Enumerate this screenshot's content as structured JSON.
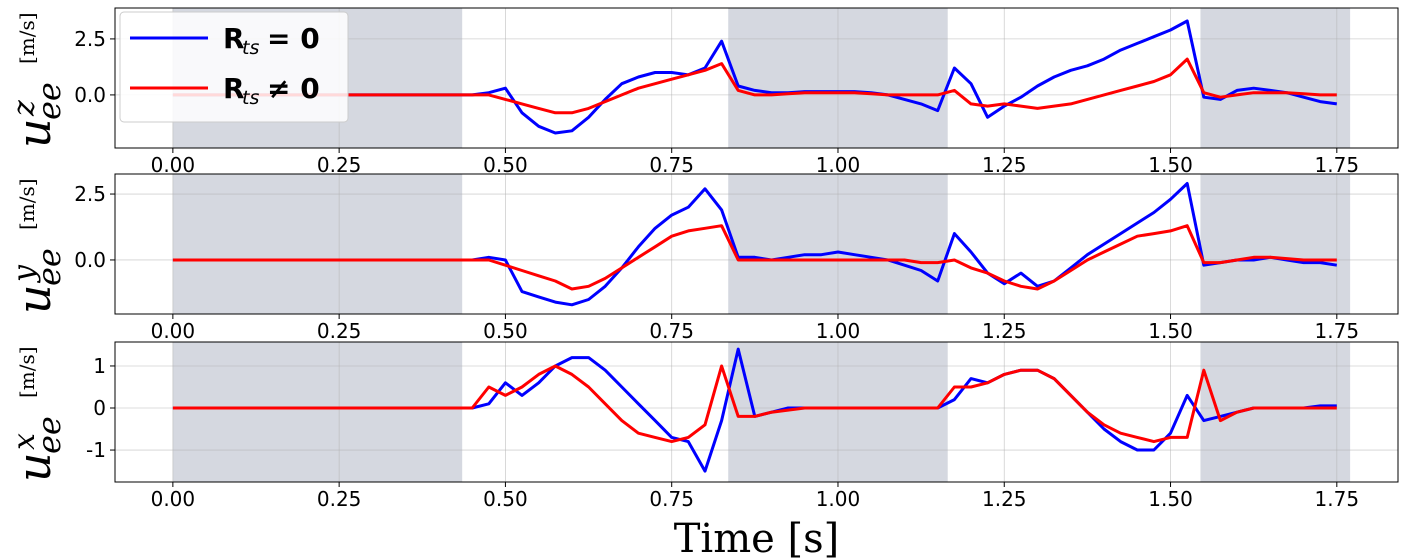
{
  "chart_data": [
    {
      "type": "line",
      "ylabel": {
        "base": "u",
        "sub": "ee",
        "sup": "z",
        "unit": "[m/s]"
      },
      "x": [
        0,
        0.025,
        0.05,
        0.075,
        0.1,
        0.125,
        0.15,
        0.175,
        0.2,
        0.225,
        0.25,
        0.275,
        0.3,
        0.325,
        0.35,
        0.375,
        0.4,
        0.425,
        0.45,
        0.475,
        0.5,
        0.525,
        0.55,
        0.575,
        0.6,
        0.625,
        0.65,
        0.675,
        0.7,
        0.725,
        0.75,
        0.775,
        0.8,
        0.825,
        0.85,
        0.875,
        0.9,
        0.925,
        0.95,
        0.975,
        1,
        1.025,
        1.05,
        1.075,
        1.1,
        1.125,
        1.15,
        1.175,
        1.2,
        1.225,
        1.25,
        1.275,
        1.3,
        1.325,
        1.35,
        1.375,
        1.4,
        1.425,
        1.45,
        1.475,
        1.5,
        1.525,
        1.55,
        1.575,
        1.6,
        1.625,
        1.65,
        1.675,
        1.7,
        1.725,
        1.75
      ],
      "series": [
        {
          "name": {
            "base": "R",
            "sub": "ts",
            "rel": "= 0"
          },
          "color": "#0000ff",
          "values": [
            0,
            0,
            0,
            0,
            0,
            0,
            0,
            0,
            0,
            0,
            0,
            0,
            0,
            0,
            0,
            0,
            0,
            0,
            0,
            0.1,
            0.3,
            -0.8,
            -1.4,
            -1.7,
            -1.6,
            -1.0,
            -0.2,
            0.5,
            0.8,
            1.0,
            1.0,
            0.9,
            1.2,
            2.4,
            0.4,
            0.2,
            0.1,
            0.1,
            0.15,
            0.15,
            0.15,
            0.15,
            0.1,
            0,
            -0.2,
            -0.4,
            -0.7,
            1.2,
            0.5,
            -1.0,
            -0.5,
            -0.1,
            0.4,
            0.8,
            1.1,
            1.3,
            1.6,
            2.0,
            2.3,
            2.6,
            2.9,
            3.3,
            -0.1,
            -0.2,
            0.2,
            0.3,
            0.2,
            0.1,
            -0.1,
            -0.3,
            -0.4
          ]
        },
        {
          "name": {
            "base": "R",
            "sub": "ts",
            "rel": "≠ 0"
          },
          "color": "#ff0000",
          "values": [
            0,
            0,
            0,
            0,
            0,
            0,
            0,
            0,
            0,
            0,
            0,
            0,
            0,
            0,
            0,
            0,
            0,
            0,
            0,
            0,
            -0.2,
            -0.4,
            -0.6,
            -0.8,
            -0.8,
            -0.6,
            -0.3,
            0,
            0.3,
            0.5,
            0.7,
            0.9,
            1.1,
            1.4,
            0.2,
            0,
            0,
            0.05,
            0.1,
            0.1,
            0.1,
            0.1,
            0.05,
            0,
            0,
            0,
            0,
            0.2,
            -0.4,
            -0.5,
            -0.4,
            -0.5,
            -0.6,
            -0.5,
            -0.4,
            -0.2,
            0,
            0.2,
            0.4,
            0.6,
            0.9,
            1.6,
            0.1,
            -0.1,
            0,
            0.1,
            0.1,
            0.1,
            0.05,
            0,
            0
          ]
        }
      ],
      "xlim": [
        -0.087,
        1.842
      ],
      "ylim": [
        -2.37,
        3.88
      ],
      "xticks": [
        {
          "value": 0,
          "label": "0.00"
        },
        {
          "value": 0.25,
          "label": "0.25"
        },
        {
          "value": 0.5,
          "label": "0.50"
        },
        {
          "value": 0.75,
          "label": "0.75"
        },
        {
          "value": 1,
          "label": "1.00"
        },
        {
          "value": 1.25,
          "label": "1.25"
        },
        {
          "value": 1.5,
          "label": "1.50"
        },
        {
          "value": 1.75,
          "label": "1.75"
        }
      ],
      "yticks": [
        {
          "value": 0,
          "label": "0.0"
        },
        {
          "value": 2.5,
          "label": "2.5"
        }
      ],
      "shaded": [
        [
          0,
          0.435
        ],
        [
          0.835,
          1.165
        ],
        [
          1.545,
          1.77
        ]
      ],
      "shade_color": "#d5d8e0",
      "grid": true,
      "legend": "upper left"
    },
    {
      "type": "line",
      "ylabel": {
        "base": "u",
        "sub": "ee",
        "sup": "y",
        "unit": "[m/s]"
      },
      "x": [
        0,
        0.025,
        0.05,
        0.075,
        0.1,
        0.125,
        0.15,
        0.175,
        0.2,
        0.225,
        0.25,
        0.275,
        0.3,
        0.325,
        0.35,
        0.375,
        0.4,
        0.425,
        0.45,
        0.475,
        0.5,
        0.525,
        0.55,
        0.575,
        0.6,
        0.625,
        0.65,
        0.675,
        0.7,
        0.725,
        0.75,
        0.775,
        0.8,
        0.825,
        0.85,
        0.875,
        0.9,
        0.925,
        0.95,
        0.975,
        1,
        1.025,
        1.05,
        1.075,
        1.1,
        1.125,
        1.15,
        1.175,
        1.2,
        1.225,
        1.25,
        1.275,
        1.3,
        1.325,
        1.35,
        1.375,
        1.4,
        1.425,
        1.45,
        1.475,
        1.5,
        1.525,
        1.55,
        1.575,
        1.6,
        1.625,
        1.65,
        1.675,
        1.7,
        1.725,
        1.75
      ],
      "series": [
        {
          "color": "#0000ff",
          "values": [
            0,
            0,
            0,
            0,
            0,
            0,
            0,
            0,
            0,
            0,
            0,
            0,
            0,
            0,
            0,
            0,
            0,
            0,
            0,
            0.1,
            0,
            -1.2,
            -1.4,
            -1.6,
            -1.7,
            -1.5,
            -1.0,
            -0.3,
            0.5,
            1.2,
            1.7,
            2.0,
            2.7,
            1.9,
            0.1,
            0.1,
            0,
            0.1,
            0.2,
            0.2,
            0.3,
            0.2,
            0.1,
            0,
            -0.2,
            -0.4,
            -0.8,
            1.0,
            0.3,
            -0.5,
            -0.9,
            -0.5,
            -1.0,
            -0.8,
            -0.3,
            0.2,
            0.6,
            1.0,
            1.4,
            1.8,
            2.3,
            2.9,
            -0.2,
            -0.1,
            0,
            0,
            0.1,
            0,
            -0.1,
            -0.1,
            -0.2
          ]
        },
        {
          "color": "#ff0000",
          "values": [
            0,
            0,
            0,
            0,
            0,
            0,
            0,
            0,
            0,
            0,
            0,
            0,
            0,
            0,
            0,
            0,
            0,
            0,
            0,
            0,
            -0.2,
            -0.4,
            -0.6,
            -0.8,
            -1.1,
            -1.0,
            -0.7,
            -0.3,
            0.1,
            0.5,
            0.9,
            1.1,
            1.2,
            1.3,
            0,
            0,
            0,
            0,
            0,
            0,
            0,
            0,
            0,
            0,
            0,
            -0.1,
            -0.1,
            0,
            -0.3,
            -0.5,
            -0.8,
            -1.0,
            -1.1,
            -0.8,
            -0.4,
            0,
            0.3,
            0.6,
            0.9,
            1.0,
            1.1,
            1.3,
            -0.1,
            -0.1,
            0,
            0.1,
            0.1,
            0.05,
            0,
            0,
            0
          ]
        }
      ],
      "xlim": [
        -0.087,
        1.842
      ],
      "ylim": [
        -2.05,
        3.26
      ],
      "xticks": [
        {
          "value": 0,
          "label": "0.00"
        },
        {
          "value": 0.25,
          "label": "0.25"
        },
        {
          "value": 0.5,
          "label": "0.50"
        },
        {
          "value": 0.75,
          "label": "0.75"
        },
        {
          "value": 1,
          "label": "1.00"
        },
        {
          "value": 1.25,
          "label": "1.25"
        },
        {
          "value": 1.5,
          "label": "1.50"
        },
        {
          "value": 1.75,
          "label": "1.75"
        }
      ],
      "yticks": [
        {
          "value": 0,
          "label": "0.0"
        },
        {
          "value": 2.5,
          "label": "2.5"
        }
      ],
      "shaded": [
        [
          0,
          0.435
        ],
        [
          0.835,
          1.165
        ],
        [
          1.545,
          1.77
        ]
      ],
      "shade_color": "#d5d8e0",
      "grid": true
    },
    {
      "type": "line",
      "ylabel": {
        "base": "u",
        "sub": "ee",
        "sup": "x",
        "unit": "[m/s]"
      },
      "xlabel": "Time [s]",
      "x": [
        0,
        0.025,
        0.05,
        0.075,
        0.1,
        0.125,
        0.15,
        0.175,
        0.2,
        0.225,
        0.25,
        0.275,
        0.3,
        0.325,
        0.35,
        0.375,
        0.4,
        0.425,
        0.45,
        0.475,
        0.5,
        0.525,
        0.55,
        0.575,
        0.6,
        0.625,
        0.65,
        0.675,
        0.7,
        0.725,
        0.75,
        0.775,
        0.8,
        0.825,
        0.85,
        0.875,
        0.9,
        0.925,
        0.95,
        0.975,
        1,
        1.025,
        1.05,
        1.075,
        1.1,
        1.125,
        1.15,
        1.175,
        1.2,
        1.225,
        1.25,
        1.275,
        1.3,
        1.325,
        1.35,
        1.375,
        1.4,
        1.425,
        1.45,
        1.475,
        1.5,
        1.525,
        1.55,
        1.575,
        1.6,
        1.625,
        1.65,
        1.675,
        1.7,
        1.725,
        1.75
      ],
      "series": [
        {
          "color": "#0000ff",
          "values": [
            0,
            0,
            0,
            0,
            0,
            0,
            0,
            0,
            0,
            0,
            0,
            0,
            0,
            0,
            0,
            0,
            0,
            0,
            0,
            0.1,
            0.6,
            0.3,
            0.6,
            1.0,
            1.2,
            1.2,
            0.9,
            0.5,
            0.1,
            -0.3,
            -0.7,
            -0.8,
            -1.5,
            -0.3,
            1.4,
            -0.2,
            -0.1,
            0,
            0,
            0,
            0,
            0,
            0,
            0,
            0,
            0,
            0,
            0.2,
            0.7,
            0.6,
            0.8,
            0.9,
            0.9,
            0.7,
            0.3,
            -0.1,
            -0.5,
            -0.8,
            -1.0,
            -1.0,
            -0.6,
            0.3,
            -0.3,
            -0.2,
            -0.1,
            0,
            0,
            0,
            0,
            0.05,
            0.05
          ]
        },
        {
          "color": "#ff0000",
          "values": [
            0,
            0,
            0,
            0,
            0,
            0,
            0,
            0,
            0,
            0,
            0,
            0,
            0,
            0,
            0,
            0,
            0,
            0,
            0,
            0.5,
            0.3,
            0.5,
            0.8,
            1.0,
            0.8,
            0.5,
            0.1,
            -0.3,
            -0.6,
            -0.7,
            -0.8,
            -0.7,
            -0.4,
            1.0,
            -0.2,
            -0.2,
            -0.1,
            -0.05,
            0,
            0,
            0,
            0,
            0,
            0,
            0,
            0,
            0,
            0.5,
            0.5,
            0.6,
            0.8,
            0.9,
            0.9,
            0.7,
            0.3,
            -0.1,
            -0.4,
            -0.6,
            -0.7,
            -0.8,
            -0.7,
            -0.7,
            0.9,
            -0.3,
            -0.1,
            0,
            0,
            0,
            0,
            0,
            0
          ]
        }
      ],
      "xlim": [
        -0.087,
        1.842
      ],
      "ylim": [
        -1.76,
        1.57
      ],
      "xticks": [
        {
          "value": 0,
          "label": "0.00"
        },
        {
          "value": 0.25,
          "label": "0.25"
        },
        {
          "value": 0.5,
          "label": "0.50"
        },
        {
          "value": 0.75,
          "label": "0.75"
        },
        {
          "value": 1,
          "label": "1.00"
        },
        {
          "value": 1.25,
          "label": "1.25"
        },
        {
          "value": 1.5,
          "label": "1.50"
        },
        {
          "value": 1.75,
          "label": "1.75"
        }
      ],
      "yticks": [
        -1,
        0,
        1
      ],
      "shaded": [
        [
          0,
          0.435
        ],
        [
          0.835,
          1.165
        ],
        [
          1.545,
          1.77
        ]
      ],
      "shade_color": "#d5d8e0",
      "grid": true
    }
  ]
}
